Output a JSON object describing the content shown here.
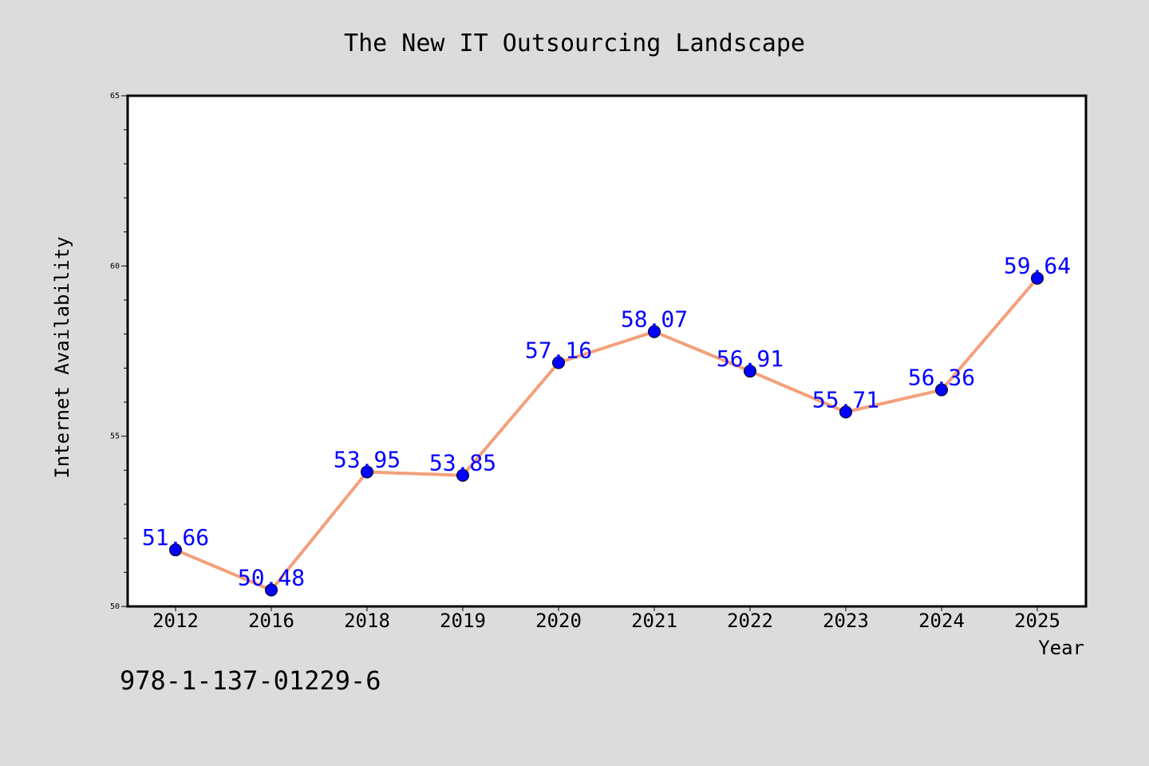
{
  "chart_data": {
    "type": "line",
    "title": "The New IT Outsourcing Landscape",
    "xlabel": "Year",
    "ylabel": "Internet Availability",
    "categories": [
      "2012",
      "2016",
      "2018",
      "2019",
      "2020",
      "2021",
      "2022",
      "2023",
      "2024",
      "2025"
    ],
    "series": [
      {
        "values": [
          51.66,
          50.48,
          53.95,
          53.85,
          57.16,
          58.07,
          56.91,
          55.71,
          56.36,
          59.64
        ],
        "labels": [
          "51.66",
          "50.48",
          "53.95",
          "53.85",
          "57.16",
          "58.07",
          "56.91",
          "55.71",
          "56.36",
          "59.64"
        ],
        "line_color": "#f4a07a",
        "marker_color": "#0000ff"
      }
    ],
    "ylim": [
      50,
      65
    ],
    "yticks": [
      "50",
      "55",
      "60",
      "65"
    ],
    "grid": false,
    "background": "#dcdcdc",
    "plot_background": "#ffffff"
  },
  "annotation": "978-1-137-01229-6"
}
